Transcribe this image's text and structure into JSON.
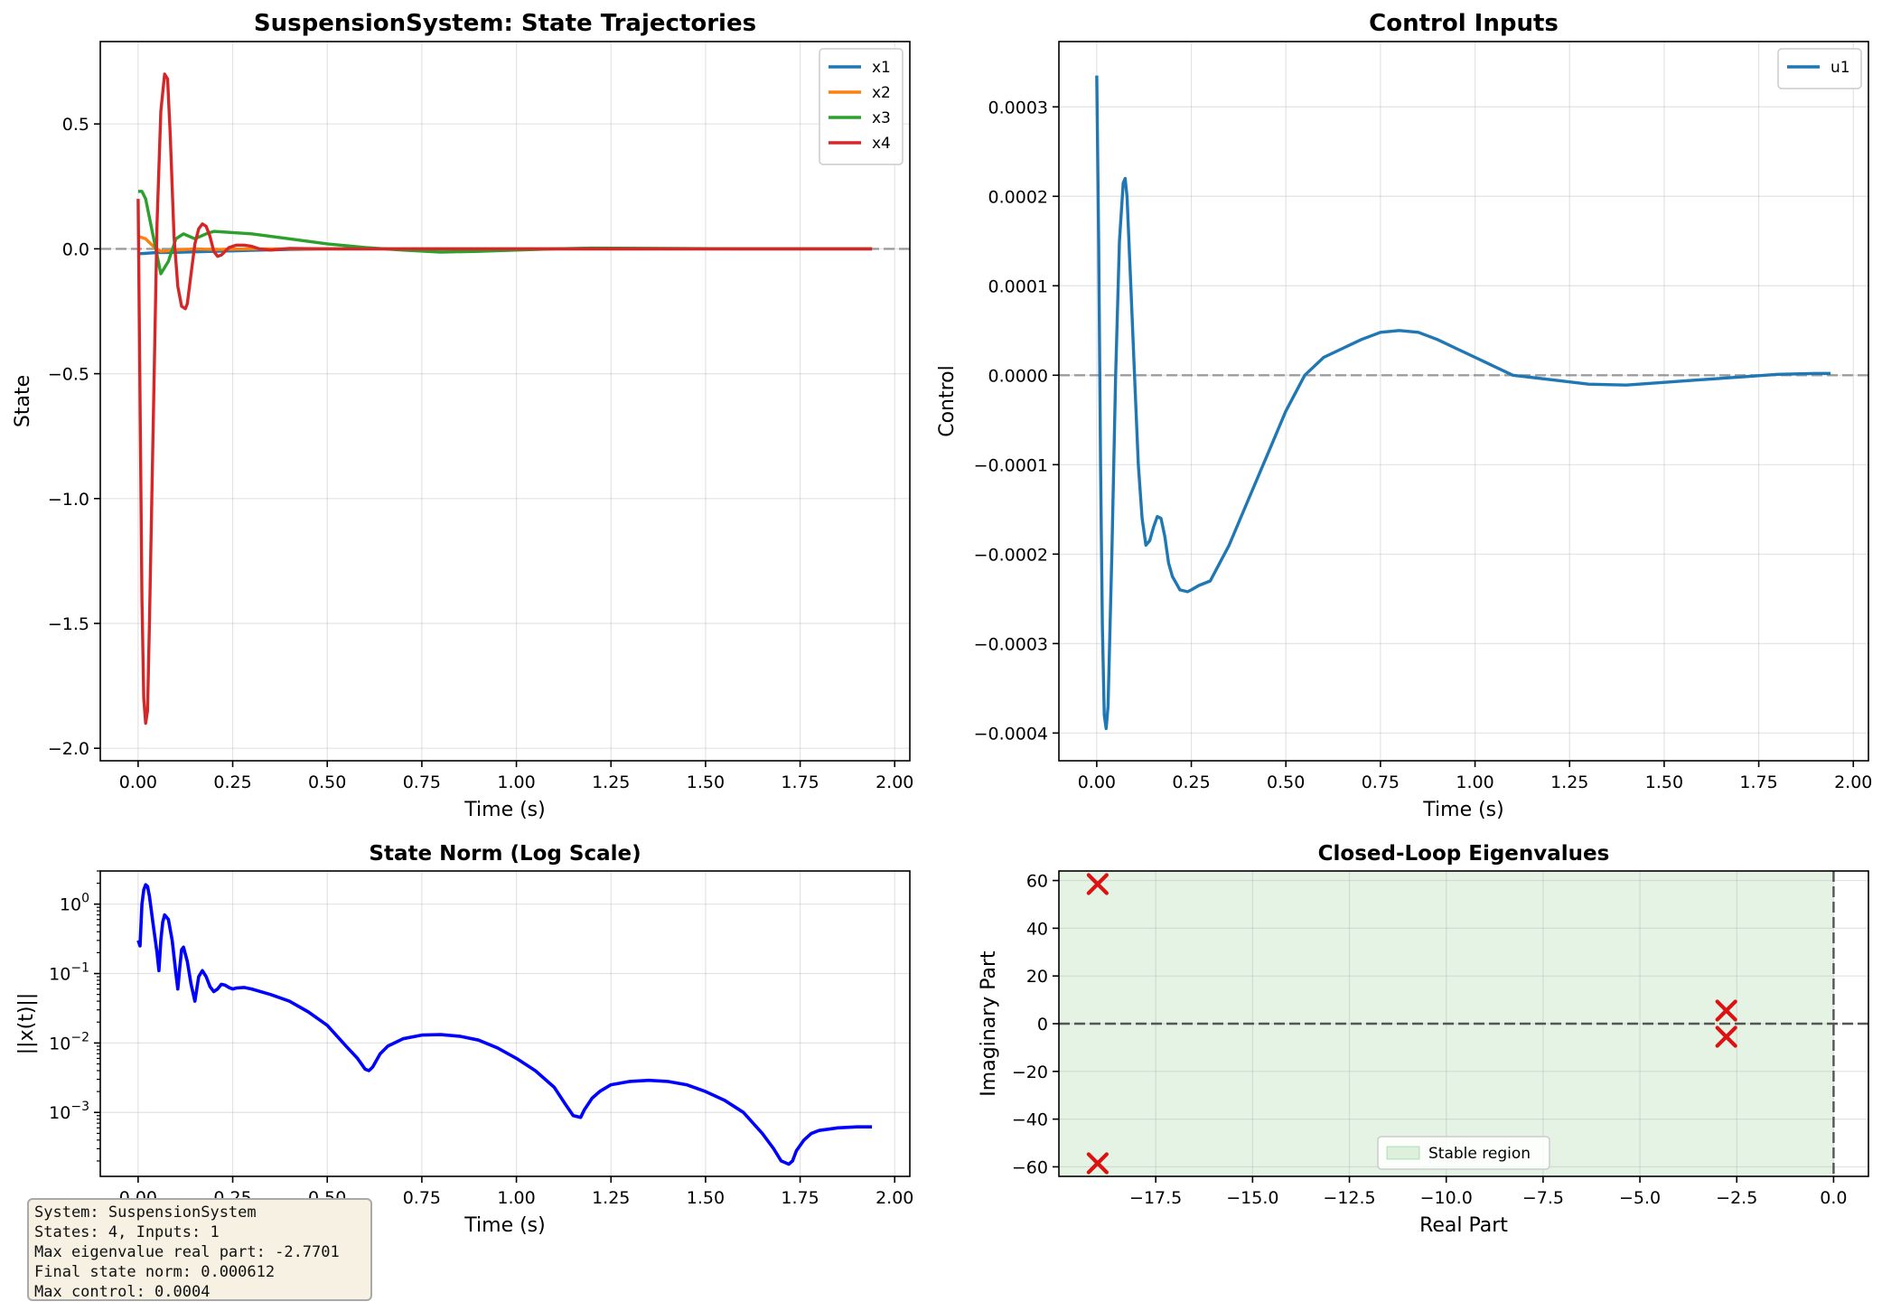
{
  "info_box": {
    "line1": "System: SuspensionSystem",
    "line2": "States: 4, Inputs: 1",
    "line3": "Max eigenvalue real part: -2.7701",
    "line4": "Final state norm: 0.000612",
    "line5": "Max control: 0.0004"
  },
  "chart_data": [
    {
      "id": "states",
      "type": "line",
      "title": "SuspensionSystem: State Trajectories",
      "xlabel": "Time (s)",
      "ylabel": "State",
      "xlim": [
        -0.1,
        2.04
      ],
      "ylim": [
        -2.05,
        0.83
      ],
      "xticks": [
        0,
        0.25,
        0.5,
        0.75,
        1.0,
        1.25,
        1.5,
        1.75,
        2.0
      ],
      "xticklabels": [
        "0.00",
        "0.25",
        "0.50",
        "0.75",
        "1.00",
        "1.25",
        "1.50",
        "1.75",
        "2.00"
      ],
      "yticks": [
        0.5,
        0,
        -0.5,
        -1.0,
        -1.5,
        -2.0
      ],
      "yticklabels": [
        "0.5",
        "0.0",
        "−0.5",
        "−1.0",
        "−1.5",
        "−2.0"
      ],
      "grid": true,
      "legend": "top-right",
      "zero_line": true,
      "series": [
        {
          "name": "x1",
          "color": "#1f77b4",
          "x": [
            0,
            0.05,
            0.1,
            0.2,
            0.3,
            0.4,
            0.5,
            0.7,
            1.0,
            1.5,
            1.94
          ],
          "y": [
            -0.02,
            -0.015,
            -0.014,
            -0.01,
            -0.006,
            -0.002,
            0,
            0,
            0,
            0,
            0
          ]
        },
        {
          "name": "x2",
          "color": "#ff7f0e",
          "x": [
            0,
            0.02,
            0.04,
            0.06,
            0.1,
            0.15,
            0.2,
            0.3,
            0.5,
            1.0,
            1.94
          ],
          "y": [
            0.05,
            0.04,
            0.01,
            -0.01,
            -0.005,
            0,
            -0.003,
            0,
            0,
            0,
            0
          ]
        },
        {
          "name": "x3",
          "color": "#2ca02c",
          "x": [
            0,
            0.01,
            0.02,
            0.04,
            0.06,
            0.08,
            0.1,
            0.12,
            0.15,
            0.18,
            0.2,
            0.25,
            0.3,
            0.35,
            0.4,
            0.5,
            0.6,
            0.7,
            0.8,
            0.9,
            1.0,
            1.1,
            1.2,
            1.4,
            1.6,
            1.94
          ],
          "y": [
            0.23,
            0.23,
            0.2,
            0.05,
            -0.1,
            -0.05,
            0.04,
            0.06,
            0.04,
            0.06,
            0.07,
            0.065,
            0.06,
            0.05,
            0.04,
            0.02,
            0.005,
            -0.005,
            -0.013,
            -0.01,
            -0.005,
            0,
            0.003,
            0.002,
            0,
            0
          ]
        },
        {
          "name": "x4",
          "color": "#d62728",
          "x": [
            0,
            0.005,
            0.01,
            0.015,
            0.02,
            0.025,
            0.03,
            0.04,
            0.05,
            0.06,
            0.07,
            0.078,
            0.085,
            0.095,
            0.105,
            0.115,
            0.125,
            0.13,
            0.14,
            0.15,
            0.16,
            0.17,
            0.18,
            0.19,
            0.2,
            0.21,
            0.22,
            0.23,
            0.24,
            0.26,
            0.28,
            0.3,
            0.32,
            0.35,
            0.4,
            0.5,
            1.0,
            1.94
          ],
          "y": [
            0.2,
            -0.6,
            -1.4,
            -1.8,
            -1.9,
            -1.85,
            -1.5,
            -0.7,
            0.1,
            0.55,
            0.7,
            0.68,
            0.45,
            0.05,
            -0.15,
            -0.23,
            -0.24,
            -0.22,
            -0.1,
            0.02,
            0.08,
            0.1,
            0.09,
            0.05,
            -0.01,
            -0.03,
            -0.025,
            -0.01,
            0.005,
            0.015,
            0.015,
            0.01,
            0.0,
            -0.005,
            0.002,
            0,
            0,
            0
          ]
        }
      ]
    },
    {
      "id": "control",
      "type": "line",
      "title": "Control Inputs",
      "xlabel": "Time (s)",
      "ylabel": "Control",
      "xlim": [
        -0.1,
        2.04
      ],
      "ylim": [
        -0.000431,
        0.000373
      ],
      "xticks": [
        0,
        0.25,
        0.5,
        0.75,
        1.0,
        1.25,
        1.5,
        1.75,
        2.0
      ],
      "xticklabels": [
        "0.00",
        "0.25",
        "0.50",
        "0.75",
        "1.00",
        "1.25",
        "1.50",
        "1.75",
        "2.00"
      ],
      "yticks": [
        0.0003,
        0.0002,
        0.0001,
        0,
        -0.0001,
        -0.0002,
        -0.0003,
        -0.0004
      ],
      "yticklabels": [
        "0.0003",
        "0.0002",
        "0.0001",
        "0.0000",
        "−0.0001",
        "−0.0002",
        "−0.0003",
        "−0.0004"
      ],
      "grid": true,
      "legend": "top-right",
      "zero_line": true,
      "series": [
        {
          "name": "u1",
          "color": "#1f77b4",
          "x": [
            0,
            0.005,
            0.01,
            0.015,
            0.02,
            0.025,
            0.03,
            0.04,
            0.05,
            0.06,
            0.07,
            0.075,
            0.08,
            0.09,
            0.1,
            0.11,
            0.12,
            0.13,
            0.14,
            0.15,
            0.16,
            0.17,
            0.18,
            0.19,
            0.2,
            0.22,
            0.24,
            0.25,
            0.27,
            0.3,
            0.35,
            0.4,
            0.45,
            0.5,
            0.55,
            0.6,
            0.65,
            0.7,
            0.75,
            0.8,
            0.85,
            0.9,
            0.95,
            1.0,
            1.1,
            1.2,
            1.3,
            1.4,
            1.5,
            1.6,
            1.7,
            1.8,
            1.9,
            1.94
          ],
          "y": [
            0.000335,
            0.00015,
            -0.0001,
            -0.00028,
            -0.00038,
            -0.000395,
            -0.00037,
            -0.0002,
            0.0,
            0.00015,
            0.000215,
            0.00022,
            0.0002,
            0.0001,
            0.0,
            -0.0001,
            -0.00016,
            -0.00019,
            -0.000185,
            -0.00017,
            -0.000158,
            -0.00016,
            -0.00018,
            -0.00021,
            -0.000225,
            -0.00024,
            -0.000242,
            -0.00024,
            -0.000235,
            -0.00023,
            -0.00019,
            -0.00014,
            -9e-05,
            -4e-05,
            0.0,
            2e-05,
            3e-05,
            4e-05,
            4.8e-05,
            5e-05,
            4.8e-05,
            4e-05,
            3e-05,
            2e-05,
            0.0,
            -5e-06,
            -1e-05,
            -1.1e-05,
            -8e-06,
            -5e-06,
            -2e-06,
            1e-06,
            2e-06,
            2e-06
          ]
        }
      ]
    },
    {
      "id": "norm",
      "type": "line",
      "title": "State Norm (Log Scale)",
      "xlabel": "Time (s)",
      "ylabel": "||x(t)||",
      "yscale": "log",
      "xlim": [
        -0.1,
        2.04
      ],
      "ylim": [
        0.00012,
        3.0
      ],
      "xticks": [
        0,
        0.25,
        0.5,
        0.75,
        1.0,
        1.25,
        1.5,
        1.75,
        2.0
      ],
      "xticklabels": [
        "0.00",
        "0.25",
        "0.50",
        "0.75",
        "1.00",
        "1.25",
        "1.50",
        "1.75",
        "2.00"
      ],
      "yticks": [
        1,
        0.1,
        0.01,
        0.001
      ],
      "yticklabels_base": "10",
      "yticklabels_exp": [
        "0",
        "−1",
        "−2",
        "−3"
      ],
      "grid": true,
      "series": [
        {
          "color": "#0000ff",
          "x": [
            0,
            0.005,
            0.01,
            0.015,
            0.02,
            0.025,
            0.03,
            0.04,
            0.05,
            0.055,
            0.06,
            0.065,
            0.07,
            0.08,
            0.09,
            0.1,
            0.105,
            0.11,
            0.115,
            0.12,
            0.13,
            0.14,
            0.15,
            0.155,
            0.16,
            0.165,
            0.17,
            0.18,
            0.19,
            0.2,
            0.21,
            0.22,
            0.23,
            0.24,
            0.25,
            0.26,
            0.28,
            0.3,
            0.35,
            0.4,
            0.45,
            0.5,
            0.55,
            0.58,
            0.6,
            0.61,
            0.62,
            0.64,
            0.66,
            0.7,
            0.75,
            0.8,
            0.85,
            0.9,
            0.95,
            1.0,
            1.05,
            1.1,
            1.13,
            1.15,
            1.17,
            1.18,
            1.2,
            1.22,
            1.25,
            1.3,
            1.35,
            1.4,
            1.45,
            1.5,
            1.55,
            1.6,
            1.65,
            1.68,
            1.7,
            1.72,
            1.73,
            1.74,
            1.76,
            1.78,
            1.8,
            1.85,
            1.9,
            1.94
          ],
          "y": [
            0.3,
            0.25,
            1.0,
            1.6,
            1.9,
            1.8,
            1.3,
            0.5,
            0.2,
            0.11,
            0.3,
            0.55,
            0.7,
            0.6,
            0.3,
            0.1,
            0.06,
            0.12,
            0.22,
            0.24,
            0.15,
            0.07,
            0.04,
            0.06,
            0.09,
            0.1,
            0.11,
            0.09,
            0.065,
            0.055,
            0.06,
            0.07,
            0.068,
            0.063,
            0.06,
            0.062,
            0.063,
            0.06,
            0.05,
            0.04,
            0.028,
            0.018,
            0.009,
            0.006,
            0.0042,
            0.004,
            0.0045,
            0.007,
            0.009,
            0.0115,
            0.013,
            0.0132,
            0.0125,
            0.011,
            0.0085,
            0.006,
            0.004,
            0.0023,
            0.0013,
            0.0009,
            0.00085,
            0.0011,
            0.0016,
            0.002,
            0.0025,
            0.0028,
            0.0029,
            0.0028,
            0.0025,
            0.002,
            0.0015,
            0.001,
            0.0005,
            0.0003,
            0.0002,
            0.00018,
            0.0002,
            0.00028,
            0.0004,
            0.0005,
            0.00055,
            0.0006,
            0.00062,
            0.00062
          ]
        }
      ]
    },
    {
      "id": "eig",
      "type": "scatter",
      "title": "Closed-Loop Eigenvalues",
      "xlabel": "Real Part",
      "ylabel": "Imaginary Part",
      "xlim": [
        -20.0,
        0.9
      ],
      "ylim": [
        -64.0,
        64.0
      ],
      "xticks": [
        -17.5,
        -15.0,
        -12.5,
        -10.0,
        -7.5,
        -5.0,
        -2.5,
        0
      ],
      "xticklabels": [
        "−17.5",
        "−15.0",
        "−12.5",
        "−10.0",
        "−7.5",
        "−5.0",
        "−2.5",
        "0.0"
      ],
      "yticks": [
        60,
        40,
        20,
        0,
        -20,
        -40,
        -60
      ],
      "yticklabels": [
        "60",
        "40",
        "20",
        "0",
        "−20",
        "−40",
        "−60"
      ],
      "grid": true,
      "legend": "bottom-center",
      "stable_region_label": "Stable region",
      "stable_color": "#2ca02c",
      "marker_color": "#dd1111",
      "points": [
        {
          "x": -19.0,
          "y": 58.5
        },
        {
          "x": -19.0,
          "y": -58.5
        },
        {
          "x": -2.77,
          "y": 5.5
        },
        {
          "x": -2.77,
          "y": -5.5
        }
      ]
    }
  ]
}
